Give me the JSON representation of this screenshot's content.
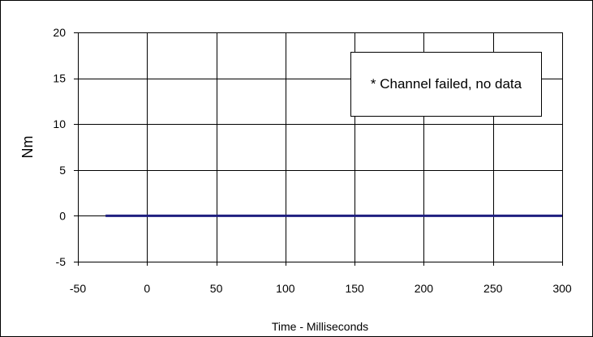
{
  "chart_data": {
    "type": "line",
    "title": "",
    "xlabel": "Time - Milliseconds",
    "ylabel": "Nm",
    "xlim": [
      -50,
      300
    ],
    "ylim": [
      -5,
      20
    ],
    "x_ticks": [
      -50,
      0,
      50,
      100,
      150,
      200,
      250,
      300
    ],
    "y_ticks": [
      -5,
      0,
      5,
      10,
      15,
      20
    ],
    "grid": true,
    "series": [
      {
        "color": "#1f1f80",
        "x": [
          -30,
          300
        ],
        "y": [
          0,
          0
        ]
      }
    ],
    "annotation": "* Channel failed, no data"
  }
}
